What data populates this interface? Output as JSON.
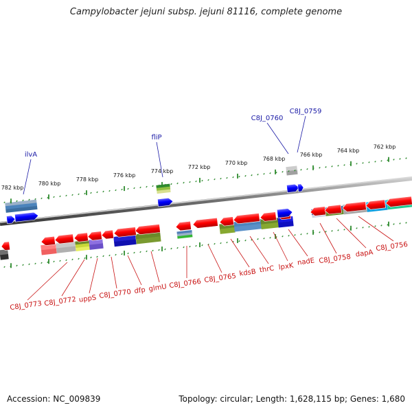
{
  "title": "Campylobacter jejuni subsp. jejuni 81116, complete genome",
  "footer": {
    "accession": "Accession: NC_009839",
    "topology": "Topology: circular; Length: 1,628,115 bp; Genes: 1,680"
  },
  "colors": {
    "tick": "#2d8a2d",
    "blue_label": "#1a1aa6",
    "red_label": "#c81010"
  },
  "kbp_labels": [
    "782 kbp",
    "780 kbp",
    "778 kbp",
    "776 kbp",
    "774 kbp",
    "772 kbp",
    "770 kbp",
    "768 kbp",
    "766 kbp",
    "764 kbp",
    "762 kbp"
  ],
  "top_gene_labels": [
    "ilvA",
    "fliP",
    "C8J_0760",
    "C8J_0759"
  ],
  "bottom_gene_labels": [
    "C8J_0773",
    "C8J_0772",
    "uppS",
    "C8J_0770",
    "dfp",
    "glmU",
    "C8J_0766",
    "C8J_0765",
    "kdsB",
    "thrC",
    "lpxK",
    "nadE",
    "C8J_0758",
    "dapA",
    "C8J_0756"
  ]
}
